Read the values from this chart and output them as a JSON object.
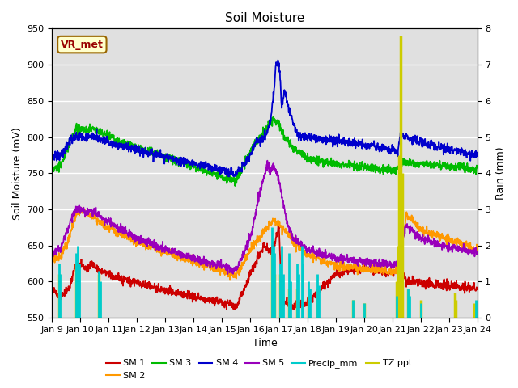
{
  "title": "Soil Moisture",
  "xlabel": "Time",
  "ylabel_left": "Soil Moisture (mV)",
  "ylabel_right": "Rain (mm)",
  "ylim_left": [
    550,
    950
  ],
  "ylim_right": [
    0.0,
    8.0
  ],
  "yticks_left": [
    550,
    600,
    650,
    700,
    750,
    800,
    850,
    900,
    950
  ],
  "yticks_right": [
    0.0,
    1.0,
    2.0,
    3.0,
    4.0,
    5.0,
    6.0,
    7.0,
    8.0
  ],
  "xtick_labels": [
    "Jan 9",
    "Jan 10",
    "Jan 11",
    "Jan 12",
    "Jan 13",
    "Jan 14",
    "Jan 15",
    "Jan 16",
    "Jan 17",
    "Jan 18",
    "Jan 19",
    "Jan 20",
    "Jan 21",
    "Jan 22",
    "Jan 23",
    "Jan 24"
  ],
  "bg_color": "#e0e0e0",
  "colors": {
    "SM1": "#cc0000",
    "SM2": "#ff9900",
    "SM3": "#00bb00",
    "SM4": "#0000cc",
    "SM5": "#9900bb",
    "Precip_mm": "#00cccc",
    "TZ_ppt": "#cccc00"
  },
  "annotation_text": "VR_met",
  "annotation_color": "#990000",
  "annotation_bg": "#ffffcc",
  "annotation_border": "#996600"
}
